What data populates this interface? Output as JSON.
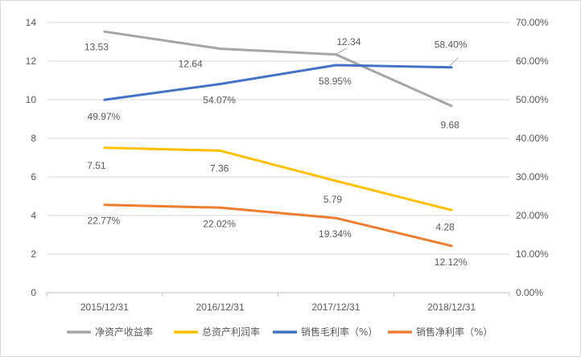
{
  "chart_data": {
    "type": "line",
    "categories": [
      "2015/12/31",
      "2016/12/31",
      "2017/12/31",
      "2018/12/31"
    ],
    "y_left": {
      "ylim": [
        0,
        14
      ],
      "ticks": [
        0,
        2,
        4,
        6,
        8,
        10,
        12,
        14
      ]
    },
    "y_right": {
      "ylim": [
        0,
        70
      ],
      "ticks": [
        0,
        10,
        20,
        30,
        40,
        50,
        60,
        70
      ],
      "tick_labels": [
        "0.00%",
        "10.00%",
        "20.00%",
        "30.00%",
        "40.00%",
        "50.00%",
        "60.00%",
        "70.00%"
      ]
    },
    "grid": "horizontal",
    "legend_position": "bottom",
    "series": [
      {
        "name": "净资产收益率",
        "axis": "left",
        "color": "#a5a5a5",
        "values": [
          13.53,
          12.64,
          12.34,
          9.68
        ],
        "labels": [
          "13.53",
          "12.64",
          "12.34",
          "9.68"
        ]
      },
      {
        "name": "总资产利润率",
        "axis": "left",
        "color": "#ffc000",
        "values": [
          7.51,
          7.36,
          5.79,
          4.28
        ],
        "labels": [
          "7.51",
          "7.36",
          "5.79",
          "4.28"
        ]
      },
      {
        "name": "销售毛利率（%）",
        "axis": "right",
        "color": "#4472c4",
        "values": [
          49.97,
          54.07,
          58.95,
          58.4
        ],
        "labels": [
          "49.97%",
          "54.07%",
          "58.95%",
          "58.40%"
        ]
      },
      {
        "name": "销售净利率（%）",
        "axis": "right",
        "color": "#ed7d31",
        "values": [
          22.77,
          22.02,
          19.34,
          12.12
        ],
        "labels": [
          "22.77%",
          "22.02%",
          "19.34%",
          "12.12%"
        ]
      }
    ]
  }
}
